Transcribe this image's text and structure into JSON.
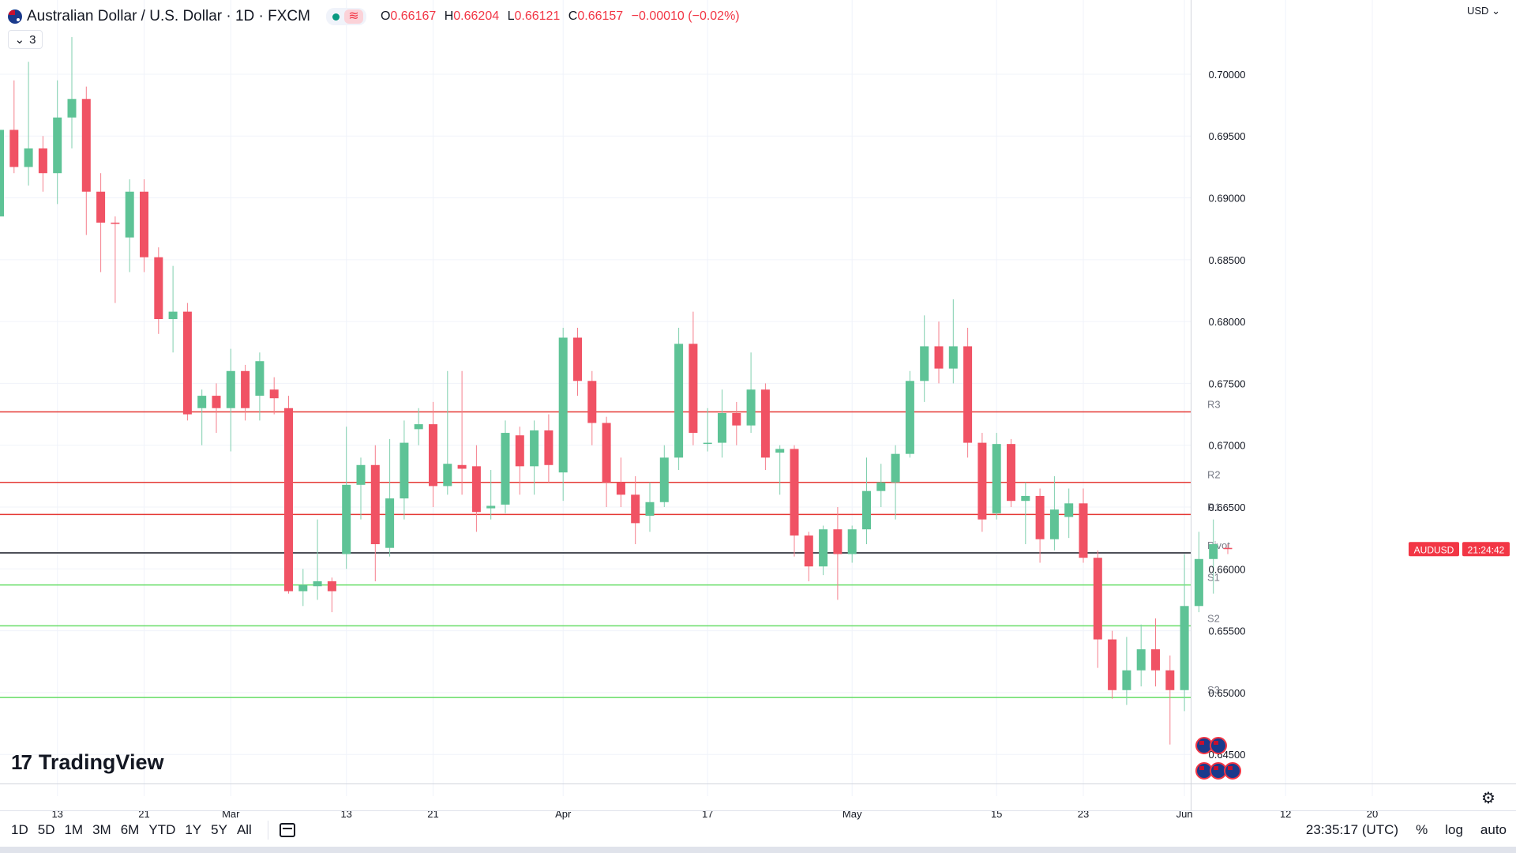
{
  "header": {
    "symbol_title": "Australian Dollar / U.S. Dollar · 1D · FXCM",
    "ohlc": {
      "o_label": "O",
      "o": "0.66167",
      "h_label": "H",
      "h": "0.66204",
      "l_label": "L",
      "l": "0.66121",
      "c_label": "C",
      "c": "0.66157",
      "change": "−0.00010 (−0.02%)"
    },
    "indicator_count": "3",
    "currency": "USD",
    "icons": [
      "flag-icon",
      "dot-icon",
      "wave-icon",
      "chevron-down-icon"
    ]
  },
  "logo_text": "TradingView",
  "toolbar": {
    "ranges": [
      "1D",
      "5D",
      "1M",
      "3M",
      "6M",
      "YTD",
      "1Y",
      "5Y",
      "All"
    ],
    "clock": "23:35:17 (UTC)",
    "percent": "%",
    "log": "log",
    "auto": "auto"
  },
  "colors": {
    "up": "#089981",
    "up_body": "#5ec396",
    "down": "#f23645",
    "down_body": "#f05264",
    "resistance": "#e53935",
    "support": "#66dd66",
    "pivot": "#131722"
  },
  "chart_data": {
    "type": "candlestick",
    "symbol": "AUDUSD",
    "timeframe": "1D",
    "ylim": [
      0.6415,
      0.706
    ],
    "y_ticks": [
      "0.70000",
      "0.69500",
      "0.69000",
      "0.68500",
      "0.68000",
      "0.67500",
      "0.67000",
      "0.66500",
      "0.66000",
      "0.65500",
      "0.65000",
      "0.64500"
    ],
    "x_ticks": [
      {
        "i": 4,
        "label": "13"
      },
      {
        "i": 10,
        "label": "21"
      },
      {
        "i": 16,
        "label": "Mar"
      },
      {
        "i": 24,
        "label": "13"
      },
      {
        "i": 30,
        "label": "21"
      },
      {
        "i": 39,
        "label": "Apr"
      },
      {
        "i": 49,
        "label": "17"
      },
      {
        "i": 59,
        "label": "May"
      },
      {
        "i": 69,
        "label": "15"
      },
      {
        "i": 75,
        "label": "23"
      },
      {
        "i": 82,
        "label": "Jun"
      },
      {
        "i": 89,
        "label": "12"
      },
      {
        "i": 95,
        "label": "20"
      }
    ],
    "levels": [
      {
        "name": "R3",
        "value": 0.6727,
        "kind": "resistance"
      },
      {
        "name": "R2",
        "value": 0.667,
        "kind": "resistance"
      },
      {
        "name": "R1",
        "value": 0.6644,
        "kind": "resistance"
      },
      {
        "name": "Pivot",
        "value": 0.6613,
        "kind": "pivot"
      },
      {
        "name": "S1",
        "value": 0.6587,
        "kind": "support"
      },
      {
        "name": "S2",
        "value": 0.6554,
        "kind": "support"
      },
      {
        "name": "S3",
        "value": 0.6496,
        "kind": "support"
      }
    ],
    "last_price_label": "AUDUSD",
    "last_price_countdown": "21:24:42",
    "candles": [
      [
        0.6885,
        0.6965,
        0.688,
        0.6955
      ],
      [
        0.6955,
        0.6995,
        0.692,
        0.6925
      ],
      [
        0.6925,
        0.701,
        0.691,
        0.694
      ],
      [
        0.694,
        0.695,
        0.6905,
        0.692
      ],
      [
        0.692,
        0.6995,
        0.6895,
        0.6965
      ],
      [
        0.6965,
        0.703,
        0.694,
        0.698
      ],
      [
        0.698,
        0.699,
        0.687,
        0.6905
      ],
      [
        0.6905,
        0.692,
        0.684,
        0.688
      ],
      [
        0.688,
        0.6885,
        0.6815,
        0.6879
      ],
      [
        0.6868,
        0.6915,
        0.684,
        0.6905
      ],
      [
        0.6905,
        0.6915,
        0.684,
        0.6852
      ],
      [
        0.6852,
        0.686,
        0.679,
        0.6802
      ],
      [
        0.6802,
        0.6845,
        0.6775,
        0.6808
      ],
      [
        0.6808,
        0.6815,
        0.672,
        0.6725
      ],
      [
        0.673,
        0.6745,
        0.67,
        0.674
      ],
      [
        0.674,
        0.675,
        0.671,
        0.673
      ],
      [
        0.673,
        0.6778,
        0.6695,
        0.676
      ],
      [
        0.676,
        0.6765,
        0.672,
        0.673
      ],
      [
        0.674,
        0.6775,
        0.672,
        0.6768
      ],
      [
        0.6745,
        0.6755,
        0.6725,
        0.6738
      ],
      [
        0.673,
        0.674,
        0.658,
        0.6582
      ],
      [
        0.6582,
        0.66,
        0.657,
        0.6587
      ],
      [
        0.6586,
        0.664,
        0.6575,
        0.659
      ],
      [
        0.659,
        0.6593,
        0.6565,
        0.6582
      ],
      [
        0.6612,
        0.6715,
        0.66,
        0.6668
      ],
      [
        0.6668,
        0.669,
        0.664,
        0.6684
      ],
      [
        0.6684,
        0.67,
        0.659,
        0.662
      ],
      [
        0.6617,
        0.6705,
        0.661,
        0.6657
      ],
      [
        0.6657,
        0.672,
        0.664,
        0.6702
      ],
      [
        0.6713,
        0.673,
        0.67,
        0.6717
      ],
      [
        0.6717,
        0.6735,
        0.665,
        0.6667
      ],
      [
        0.6667,
        0.676,
        0.666,
        0.6685
      ],
      [
        0.6684,
        0.676,
        0.666,
        0.6681
      ],
      [
        0.6683,
        0.67,
        0.663,
        0.6646
      ],
      [
        0.6649,
        0.668,
        0.664,
        0.6651
      ],
      [
        0.6652,
        0.672,
        0.6645,
        0.671
      ],
      [
        0.6708,
        0.6715,
        0.666,
        0.6683
      ],
      [
        0.6683,
        0.672,
        0.666,
        0.6712
      ],
      [
        0.6712,
        0.6725,
        0.667,
        0.6684
      ],
      [
        0.6678,
        0.6795,
        0.6655,
        0.6787
      ],
      [
        0.6787,
        0.6795,
        0.674,
        0.6752
      ],
      [
        0.6752,
        0.676,
        0.67,
        0.6718
      ],
      [
        0.6718,
        0.6723,
        0.665,
        0.667
      ],
      [
        0.667,
        0.669,
        0.665,
        0.666
      ],
      [
        0.666,
        0.6675,
        0.662,
        0.6637
      ],
      [
        0.6643,
        0.667,
        0.663,
        0.6654
      ],
      [
        0.6654,
        0.67,
        0.665,
        0.669
      ],
      [
        0.669,
        0.6795,
        0.668,
        0.6782
      ],
      [
        0.6782,
        0.6808,
        0.67,
        0.671
      ],
      [
        0.6702,
        0.673,
        0.6695,
        0.6702
      ],
      [
        0.6702,
        0.6745,
        0.669,
        0.6726
      ],
      [
        0.6726,
        0.6735,
        0.67,
        0.6716
      ],
      [
        0.6716,
        0.6775,
        0.671,
        0.6745
      ],
      [
        0.6745,
        0.675,
        0.668,
        0.669
      ],
      [
        0.6694,
        0.67,
        0.666,
        0.6697
      ],
      [
        0.6697,
        0.67,
        0.661,
        0.6627
      ],
      [
        0.6627,
        0.663,
        0.659,
        0.6602
      ],
      [
        0.6602,
        0.6635,
        0.6595,
        0.6632
      ],
      [
        0.6632,
        0.665,
        0.6575,
        0.6612
      ],
      [
        0.6612,
        0.6635,
        0.6605,
        0.6632
      ],
      [
        0.6632,
        0.669,
        0.662,
        0.6663
      ],
      [
        0.6663,
        0.6685,
        0.665,
        0.667
      ],
      [
        0.667,
        0.67,
        0.664,
        0.6693
      ],
      [
        0.6693,
        0.676,
        0.669,
        0.6752
      ],
      [
        0.6752,
        0.6805,
        0.6735,
        0.678
      ],
      [
        0.678,
        0.68,
        0.675,
        0.6762
      ],
      [
        0.6762,
        0.6818,
        0.675,
        0.678
      ],
      [
        0.678,
        0.6795,
        0.669,
        0.6702
      ],
      [
        0.6702,
        0.671,
        0.663,
        0.664
      ],
      [
        0.6645,
        0.671,
        0.664,
        0.6701
      ],
      [
        0.6701,
        0.6705,
        0.665,
        0.6655
      ],
      [
        0.6655,
        0.667,
        0.662,
        0.6659
      ],
      [
        0.6659,
        0.6665,
        0.6605,
        0.6624
      ],
      [
        0.6624,
        0.6675,
        0.6615,
        0.6648
      ],
      [
        0.6642,
        0.6665,
        0.6625,
        0.6653
      ],
      [
        0.6653,
        0.6665,
        0.6605,
        0.6609
      ],
      [
        0.6609,
        0.6615,
        0.652,
        0.6543
      ],
      [
        0.6543,
        0.655,
        0.6495,
        0.6502
      ],
      [
        0.6502,
        0.6545,
        0.649,
        0.6518
      ],
      [
        0.6518,
        0.6555,
        0.6505,
        0.6535
      ],
      [
        0.6535,
        0.656,
        0.6505,
        0.6518
      ],
      [
        0.6518,
        0.653,
        0.6458,
        0.6502
      ],
      [
        0.6502,
        0.6612,
        0.6485,
        0.657
      ],
      [
        0.657,
        0.663,
        0.6565,
        0.6608
      ],
      [
        0.6608,
        0.664,
        0.658,
        0.662
      ],
      [
        0.6617,
        0.662,
        0.6612,
        0.6616
      ]
    ]
  }
}
